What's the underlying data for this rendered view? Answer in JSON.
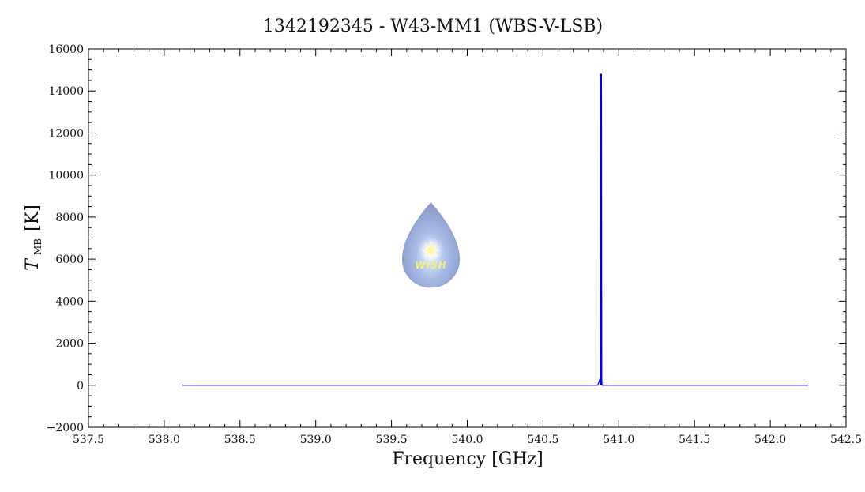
{
  "chart_data": {
    "type": "line",
    "title": "1342192345 - W43-MM1 (WBS-V-LSB)",
    "xlabel": "Frequency [GHz]",
    "ylabel": {
      "symbol": "T",
      "subscript": "MB",
      "unit": "[K]"
    },
    "xlim": [
      537.5,
      542.5
    ],
    "ylim": [
      -2000,
      16000
    ],
    "x_ticks": [
      "537.5",
      "538.0",
      "538.5",
      "539.0",
      "539.5",
      "540.0",
      "540.5",
      "541.0",
      "541.5",
      "542.0",
      "542.5"
    ],
    "y_ticks": [
      "−2000",
      "0",
      "2000",
      "4000",
      "6000",
      "8000",
      "10000",
      "12000",
      "14000",
      "16000"
    ],
    "grid": false,
    "line_color": "#0000cc",
    "series": [
      {
        "x": [
          538.12,
          539.0,
          540.0,
          540.86,
          540.87,
          540.875,
          540.878,
          540.88,
          540.882,
          540.884,
          540.886,
          540.888,
          540.89,
          540.895,
          541.0,
          542.0,
          542.25
        ],
        "y": [
          0,
          0,
          0,
          0,
          150,
          300,
          0,
          14800,
          14800,
          0,
          14800,
          200,
          0,
          0,
          0,
          0,
          0
        ]
      }
    ],
    "logo": {
      "text": "WISH",
      "center_x": 539.76,
      "center_y": 6200
    }
  }
}
